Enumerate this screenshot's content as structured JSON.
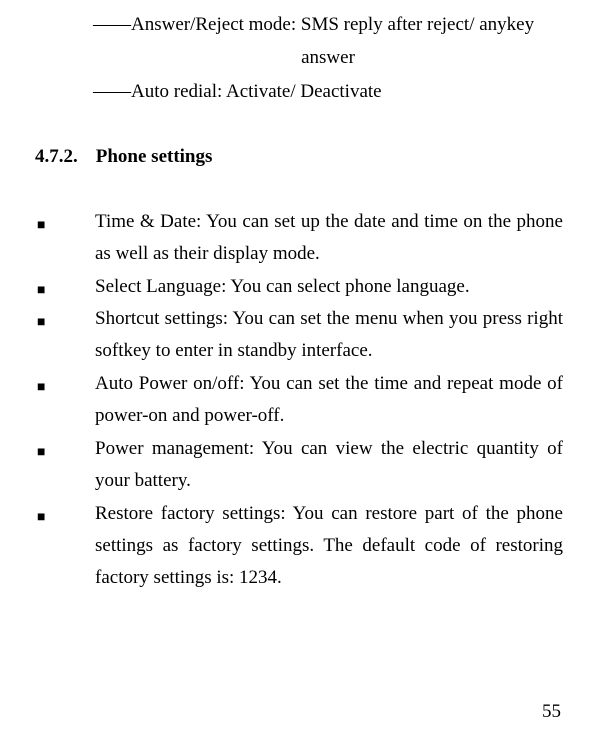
{
  "prelines": {
    "line1": "――Answer/Reject mode: SMS reply after reject/ anykey",
    "line2": "answer",
    "line3": "――Auto redial: Activate/ Deactivate"
  },
  "section": {
    "number": "4.7.2.",
    "title": "Phone settings"
  },
  "bullets": [
    {
      "text": "Time & Date: You can set up the date and time on the phone as well as their display mode."
    },
    {
      "text": "Select Language: You can select phone language."
    },
    {
      "text": "Shortcut settings: You can set the menu when you press right softkey to enter in standby interface."
    },
    {
      "text": "Auto Power on/off: You can set the time and repeat mode of power-on and power-off."
    },
    {
      "text": "Power management: You can view the electric quantity of your battery."
    },
    {
      "text": "Restore factory settings: You can restore part of the phone settings as factory settings. The default code of restoring factory settings is: 1234."
    }
  ],
  "page_number": "55",
  "bullet_glyph": "■"
}
